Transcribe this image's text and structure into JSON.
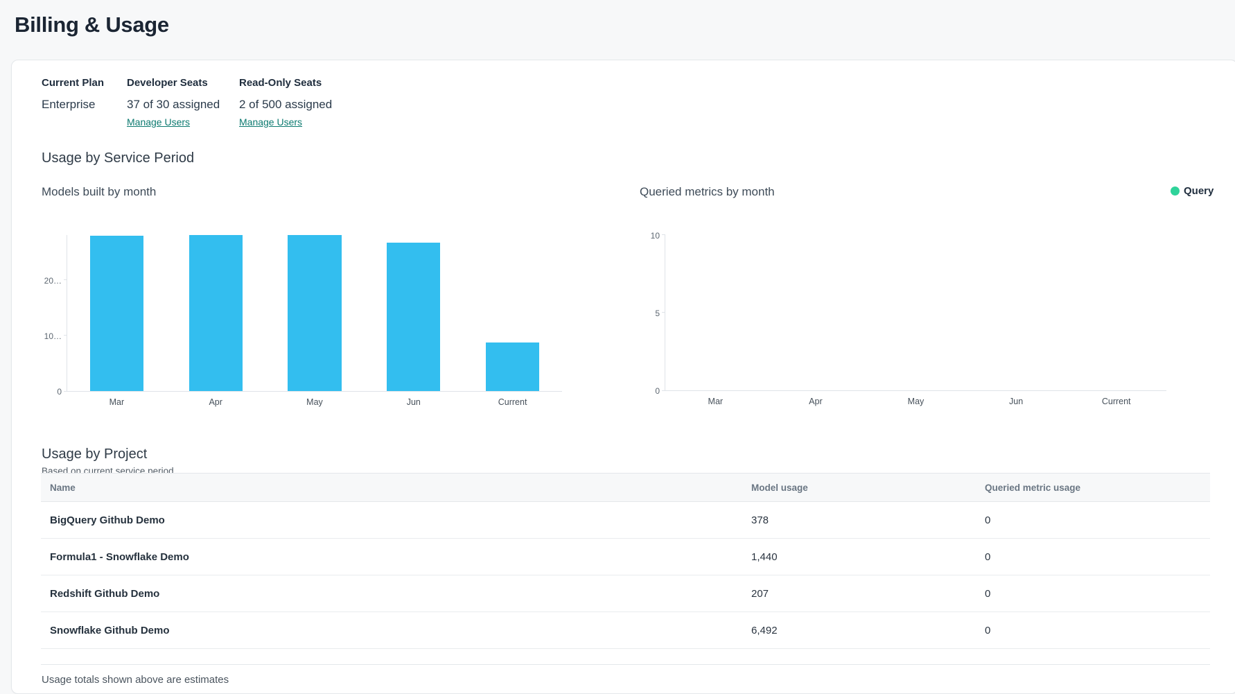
{
  "page": {
    "title": "Billing & Usage"
  },
  "plan_summary": {
    "current_plan": {
      "label": "Current Plan",
      "value": "Enterprise"
    },
    "developer_seats": {
      "label": "Developer Seats",
      "value": "37 of 30 assigned",
      "link": "Manage Users"
    },
    "readonly_seats": {
      "label": "Read-Only Seats",
      "value": "2 of 500 assigned",
      "link": "Manage Users"
    }
  },
  "usage_section": {
    "heading": "Usage by Service Period"
  },
  "chart_data": [
    {
      "type": "bar",
      "title": "Models built by month",
      "categories": [
        "Mar",
        "Apr",
        "May",
        "Jun",
        "Current"
      ],
      "values": [
        28000,
        28100,
        28100,
        26750,
        8700
      ],
      "ylim": [
        0,
        28100
      ],
      "yticks": [
        {
          "value": 0,
          "label": "0"
        },
        {
          "value": 10000,
          "label": "10…"
        },
        {
          "value": 20000,
          "label": "20…"
        }
      ],
      "bar_color": "#33beef",
      "grid": false,
      "legend_position": "none",
      "xlabel": "",
      "ylabel": ""
    },
    {
      "type": "bar",
      "title": "Queried metrics by month",
      "categories": [
        "Mar",
        "Apr",
        "May",
        "Jun",
        "Current"
      ],
      "values": [
        0,
        0,
        0,
        0,
        0
      ],
      "ylim": [
        0,
        10
      ],
      "yticks": [
        {
          "value": 0,
          "label": "0"
        },
        {
          "value": 5,
          "label": "5"
        },
        {
          "value": 10,
          "label": "10"
        }
      ],
      "bar_color": "#2fd39a",
      "grid": false,
      "legend": {
        "label": "Query",
        "color": "#2fd39a"
      },
      "legend_position": "top-right",
      "xlabel": "",
      "ylabel": ""
    }
  ],
  "project_table": {
    "heading": "Usage by Project",
    "subheading": "Based on current service period.",
    "columns": [
      "Name",
      "Model usage",
      "Queried metric usage"
    ],
    "rows": [
      {
        "name": "BigQuery Github Demo",
        "model_usage": "378",
        "queried_metric_usage": "0"
      },
      {
        "name": "Formula1 - Snowflake Demo",
        "model_usage": "1,440",
        "queried_metric_usage": "0"
      },
      {
        "name": "Redshift Github Demo",
        "model_usage": "207",
        "queried_metric_usage": "0"
      },
      {
        "name": "Snowflake Github Demo",
        "model_usage": "6,492",
        "queried_metric_usage": "0"
      }
    ],
    "footnote": "Usage totals shown above are estimates"
  },
  "colors": {
    "page_background": "#f7f8f9",
    "card_background": "#ffffff",
    "bar_blue": "#33beef",
    "legend_green": "#2fd39a",
    "link_teal": "#0d7a70",
    "heading_dark": "#1b2533",
    "axis_line": "#dfe3e8"
  }
}
